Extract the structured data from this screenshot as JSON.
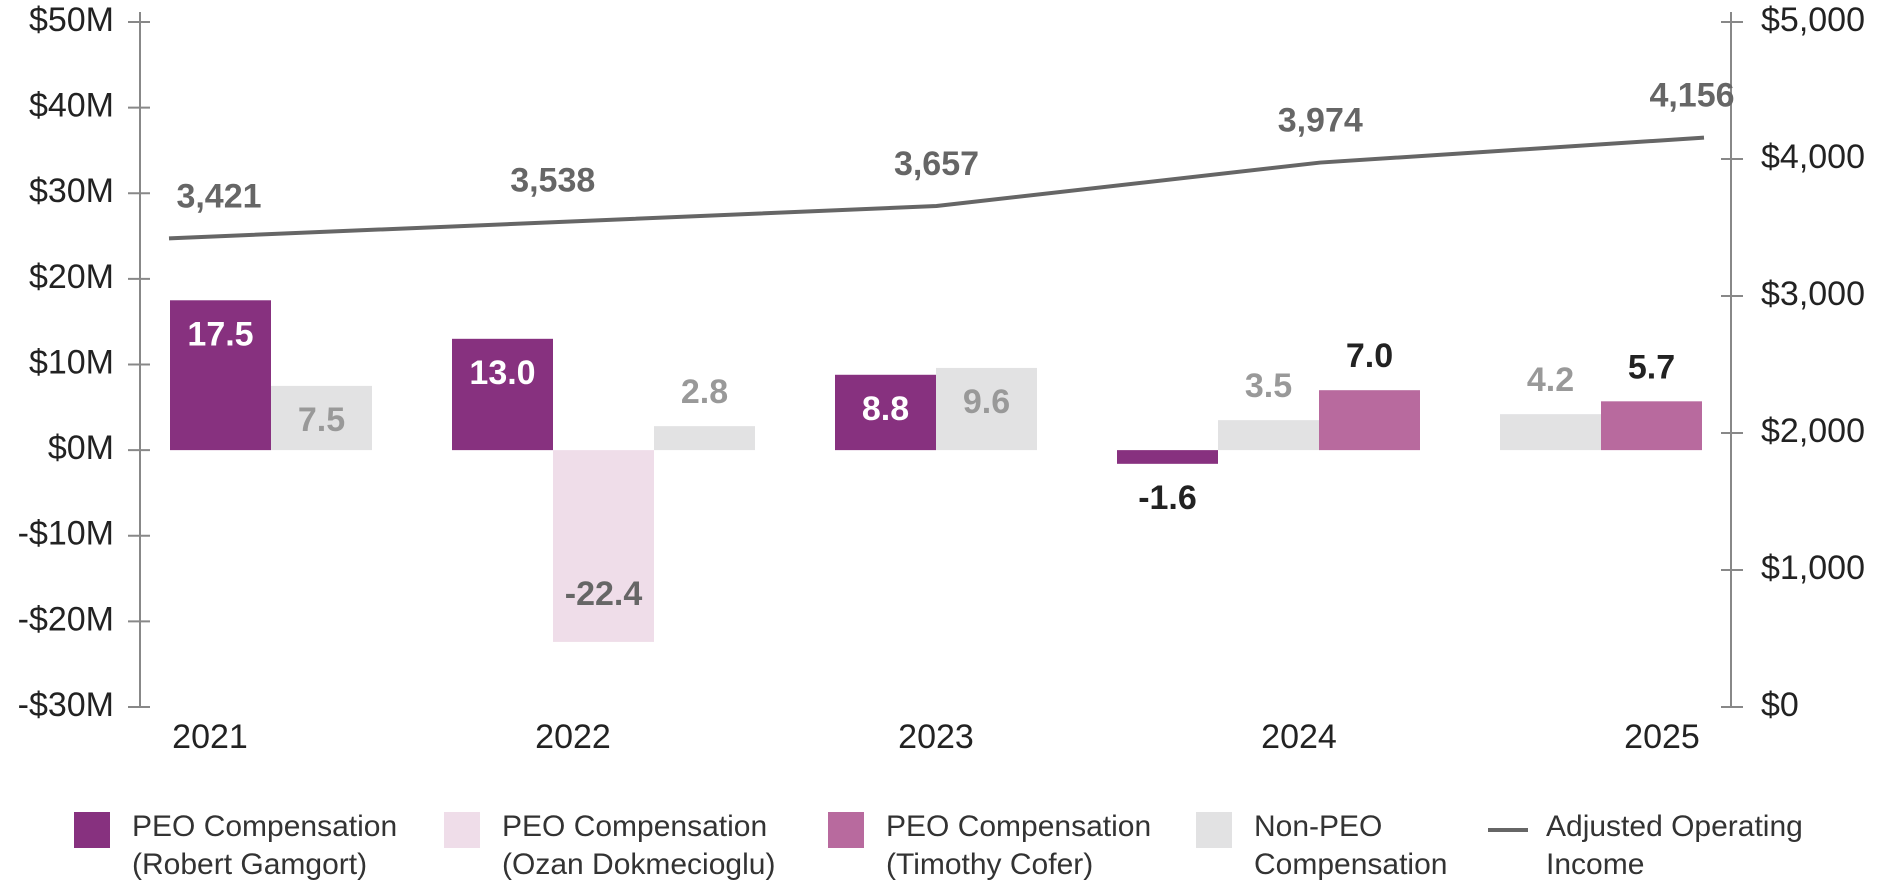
{
  "chart_data": {
    "type": "bar",
    "categories": [
      "2021",
      "2022",
      "2023",
      "2024",
      "2025"
    ],
    "ylim": [
      -30,
      50
    ],
    "yticks": [
      {
        "value": -30,
        "label": "-$30M"
      },
      {
        "value": -20,
        "label": "-$20M"
      },
      {
        "value": -10,
        "label": "-$10M"
      },
      {
        "value": 0,
        "label": "$0M"
      },
      {
        "value": 10,
        "label": "$10M"
      },
      {
        "value": 20,
        "label": "$20M"
      },
      {
        "value": 30,
        "label": "$30M"
      },
      {
        "value": 40,
        "label": "$40M"
      },
      {
        "value": 50,
        "label": "$50M"
      }
    ],
    "y2lim": [
      0,
      5000
    ],
    "y2ticks": [
      {
        "value": 0,
        "label": "$0"
      },
      {
        "value": 1000,
        "label": "$1,000"
      },
      {
        "value": 2000,
        "label": "$2,000"
      },
      {
        "value": 3000,
        "label": "$3,000"
      },
      {
        "value": 4000,
        "label": "$4,000"
      },
      {
        "value": 5000,
        "label": "$5,000"
      }
    ],
    "series": [
      {
        "name": "PEO Compensation (Robert Gamgort)",
        "color": "#87317f",
        "values": [
          17.5,
          13.0,
          8.8,
          -1.6,
          null
        ],
        "value_labels": [
          "17.5",
          "13.0",
          "8.8",
          "-1.6",
          null
        ]
      },
      {
        "name": "PEO Compensation (Ozan Dokmecioglu)",
        "color": "#efdde9",
        "values": [
          null,
          -22.4,
          null,
          null,
          null
        ],
        "value_labels": [
          null,
          "-22.4",
          null,
          null,
          null
        ]
      },
      {
        "name": "PEO Compensation (Timothy Cofer)",
        "color": "#b86a9e",
        "values": [
          null,
          null,
          null,
          7.0,
          5.7
        ],
        "value_labels": [
          null,
          null,
          null,
          "7.0",
          "5.7"
        ]
      },
      {
        "name": "Non-PEO Compensation",
        "color": "#e2e2e3",
        "values": [
          7.5,
          2.8,
          9.6,
          3.5,
          4.2
        ],
        "value_labels": [
          "7.5",
          "2.8",
          "9.6",
          "3.5",
          "4.2"
        ]
      },
      {
        "name": "Adjusted Operating Income",
        "color": "#666666",
        "type": "line",
        "axis": "y2",
        "values": [
          3421,
          3538,
          3657,
          3974,
          4156
        ],
        "value_labels": [
          "3,421",
          "3,538",
          "3,657",
          "3,974",
          "4,156"
        ]
      }
    ]
  }
}
